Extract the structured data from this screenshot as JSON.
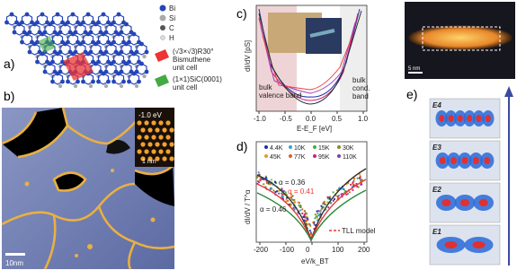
{
  "panels": {
    "a": {
      "label": "a)",
      "legend": [
        "Bi",
        "Si",
        "C",
        "H"
      ],
      "bismuthene": [
        "(√3×√3)R30°",
        "Bismuthene",
        "unit cell"
      ],
      "sic": [
        "(1×1)SiC(0001)",
        "unit cell"
      ]
    },
    "b": {
      "label": "b)",
      "inset_energy": "-1.0 eV",
      "inset_scale": "1 nm",
      "scale": "10nm"
    },
    "c": {
      "label": "c)",
      "y_label": "dI/dV [pS]",
      "x_label": "E-E_F [eV]",
      "xticks": [
        "-1.0",
        "-0.5",
        "0.0",
        "0.5",
        "1.0"
      ],
      "valence": [
        "bulk",
        "valence band"
      ],
      "conduction": [
        "bulk",
        "cond.",
        "band"
      ]
    },
    "d": {
      "label": "d)",
      "legend": [
        "4.4K",
        "10K",
        "15K",
        "30K",
        "45K",
        "77K",
        "95K",
        "110K"
      ],
      "alphas": [
        "α = 0.36",
        "α = 0.41",
        "α = 0.46"
      ],
      "model": "TLL model",
      "y_label": "dI/dV / T^α",
      "x_label": "eV/k_BT",
      "xticks": [
        "-200",
        "-100",
        "0",
        "100",
        "200"
      ]
    },
    "e": {
      "label": "e)",
      "top_scale": "5 nm",
      "levels": [
        "E4",
        "E3",
        "E2",
        "E1"
      ]
    }
  }
}
